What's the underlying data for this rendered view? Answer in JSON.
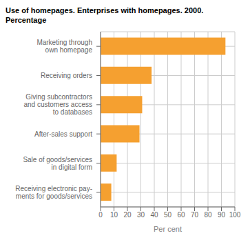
{
  "chart_data": {
    "type": "bar",
    "title": "Use of homepages. Enterprises with homepages. 2000.",
    "subtitle": "Percentage",
    "orientation": "horizontal",
    "categories": [
      "Receiving electronic pay-\nments for goods/services",
      "Sale of goods/services\nin digital form",
      "After-sales support",
      "Giving subcontractors\nand customers access\nto databases",
      "Receiving orders",
      "Marketing through\nown homepage"
    ],
    "values": [
      8,
      12,
      29,
      31,
      38,
      93
    ],
    "color": "#F5A030",
    "xlabel": "Per cent",
    "xlim": [
      0,
      100
    ],
    "xticks": [
      0,
      10,
      20,
      30,
      40,
      50,
      60,
      70,
      80,
      90,
      100
    ],
    "grid": true
  }
}
